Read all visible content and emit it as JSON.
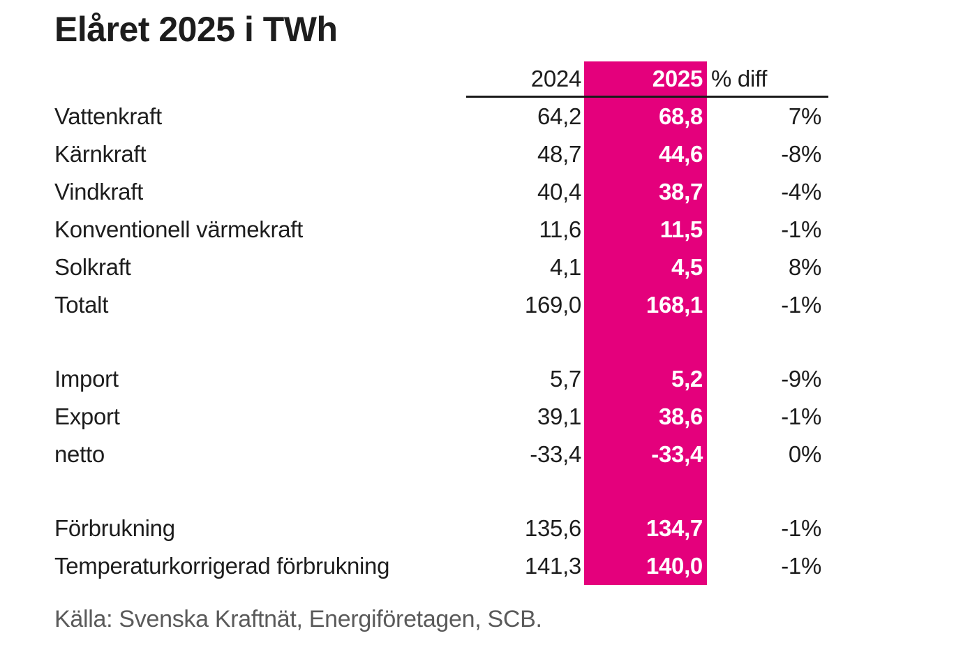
{
  "title": "Elåret 2025 i TWh",
  "source": "Källa: Svenska Kraftnät, Energiföretagen, SCB.",
  "colors": {
    "highlight": "#e4007c",
    "highlight_text": "#ffffff",
    "text": "#1d1d1d",
    "header_rule": "#1a1a1a",
    "source_text": "#5a5a5a",
    "background": "#ffffff"
  },
  "chart_data": {
    "type": "table",
    "title": "Elåret 2025 i TWh",
    "unit": "TWh",
    "columns": [
      "2024",
      "2025",
      "% diff"
    ],
    "highlight_column": "2025",
    "sections": [
      [
        {
          "label": "Vattenkraft",
          "v2024": "64,2",
          "v2025": "68,8",
          "diff": "7%"
        },
        {
          "label": "Kärnkraft",
          "v2024": "48,7",
          "v2025": "44,6",
          "diff": "-8%"
        },
        {
          "label": "Vindkraft",
          "v2024": "40,4",
          "v2025": "38,7",
          "diff": "-4%"
        },
        {
          "label": "Konventionell värmekraft",
          "v2024": "11,6",
          "v2025": "11,5",
          "diff": "-1%"
        },
        {
          "label": "Solkraft",
          "v2024": "4,1",
          "v2025": "4,5",
          "diff": "8%"
        },
        {
          "label": "Totalt",
          "v2024": "169,0",
          "v2025": "168,1",
          "diff": "-1%"
        }
      ],
      [
        {
          "label": "Import",
          "v2024": "5,7",
          "v2025": "5,2",
          "diff": "-9%"
        },
        {
          "label": "Export",
          "v2024": "39,1",
          "v2025": "38,6",
          "diff": "-1%"
        },
        {
          "label": "netto",
          "v2024": "-33,4",
          "v2025": "-33,4",
          "diff": "0%"
        }
      ],
      [
        {
          "label": "Förbrukning",
          "v2024": "135,6",
          "v2025": "134,7",
          "diff": "-1%"
        },
        {
          "label": "Temperaturkorrigerad förbrukning",
          "v2024": "141,3",
          "v2025": "140,0",
          "diff": "-1%"
        }
      ]
    ]
  }
}
